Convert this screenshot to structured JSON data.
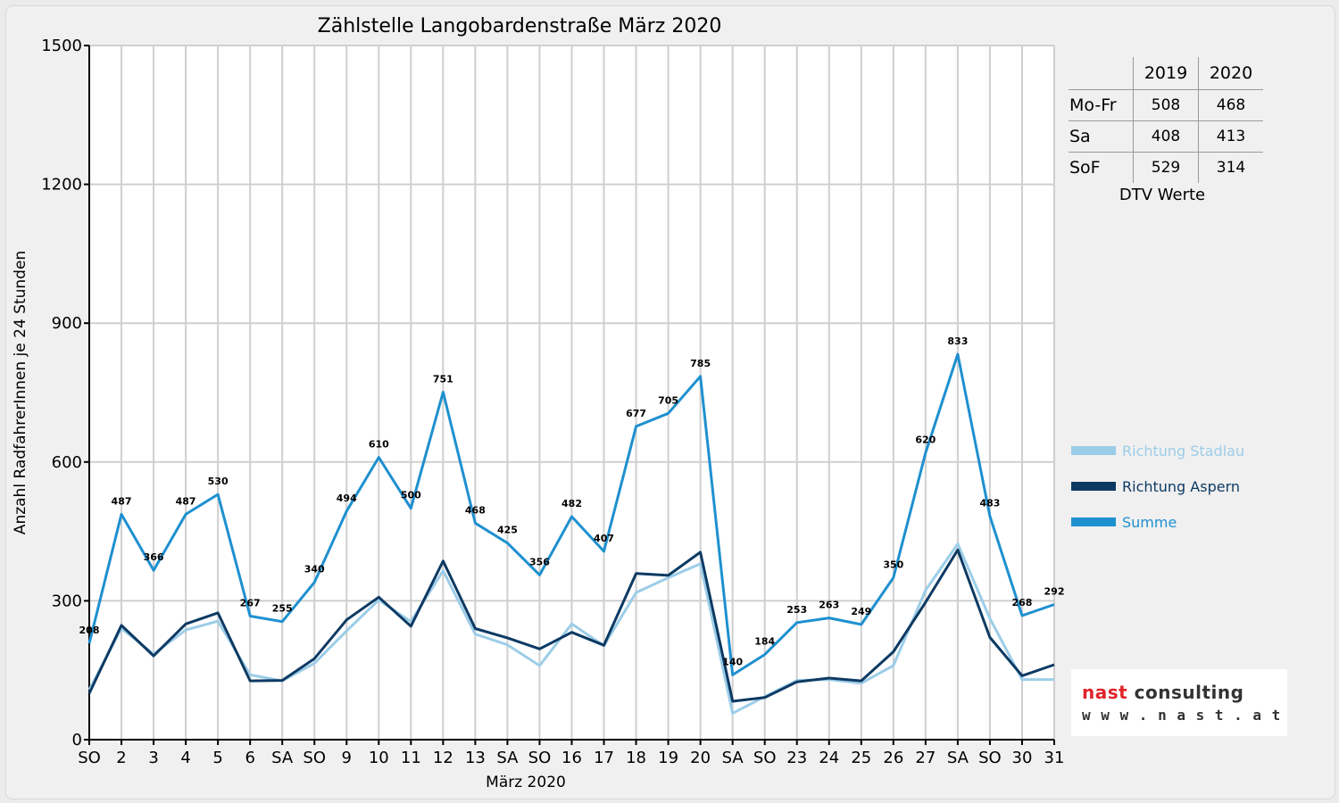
{
  "chart_data": {
    "type": "line",
    "title": "Zählstelle Langobardenstraße März 2020",
    "xlabel": "März 2020",
    "ylabel": "Anzahl RadfahrerInnen je 24 Stunden",
    "ylim": [
      0,
      1500
    ],
    "yticks": [
      0,
      300,
      600,
      900,
      1200,
      1500
    ],
    "grid": true,
    "legend_position": "right",
    "categories": [
      "SO",
      "2",
      "3",
      "4",
      "5",
      "6",
      "SA",
      "SO",
      "9",
      "10",
      "11",
      "12",
      "13",
      "SA",
      "SO",
      "16",
      "17",
      "18",
      "19",
      "20",
      "SA",
      "SO",
      "23",
      "24",
      "25",
      "26",
      "27",
      "SA",
      "SO",
      "30",
      "31"
    ],
    "sunday_indices": [
      0,
      7,
      14,
      21,
      28
    ],
    "sunday_color": "#e8000b",
    "series": [
      {
        "name": "Richtung Stadlau",
        "color": "#9ccde8",
        "values": [
          108,
          240,
          185,
          237,
          256,
          140,
          127,
          165,
          235,
          302,
          255,
          365,
          228,
          205,
          160,
          250,
          203,
          318,
          350,
          380,
          57,
          93,
          128,
          130,
          122,
          160,
          323,
          423,
          262,
          130,
          130
        ]
      },
      {
        "name": "Richtung Aspern",
        "color": "#0d3a63",
        "values": [
          100,
          247,
          181,
          250,
          274,
          127,
          128,
          175,
          259,
          308,
          245,
          386,
          240,
          220,
          196,
          232,
          204,
          359,
          355,
          405,
          83,
          91,
          125,
          133,
          127,
          190,
          297,
          410,
          221,
          138,
          162
        ]
      },
      {
        "name": "Summe",
        "color": "#1e90d0",
        "values": [
          208,
          487,
          366,
          487,
          530,
          267,
          255,
          340,
          494,
          610,
          500,
          751,
          468,
          425,
          356,
          482,
          407,
          677,
          705,
          785,
          140,
          184,
          253,
          263,
          249,
          350,
          620,
          833,
          483,
          268,
          292
        ]
      }
    ],
    "data_labels": [
      "208",
      "487",
      "366",
      "487",
      "530",
      "267",
      "255",
      "340",
      "494",
      "610",
      "500",
      "751",
      "468",
      "425",
      "356",
      "482",
      "407",
      "677",
      "705",
      "785",
      "140",
      "184",
      "253",
      "263",
      "249",
      "350",
      "620",
      "833",
      "483",
      "268",
      "292"
    ]
  },
  "dtv_table": {
    "caption": "DTV Werte",
    "header": [
      "",
      "2019",
      "2020"
    ],
    "rows": [
      {
        "label": "Mo-Fr",
        "v2019": "508",
        "v2020": "468"
      },
      {
        "label": "Sa",
        "v2019": "408",
        "v2020": "413"
      },
      {
        "label": "SoF",
        "v2019": "529",
        "v2020": "314"
      }
    ]
  },
  "logo": {
    "brand_a": "nast",
    "brand_b": " consulting",
    "url": "w w w . n a s t . a t"
  }
}
